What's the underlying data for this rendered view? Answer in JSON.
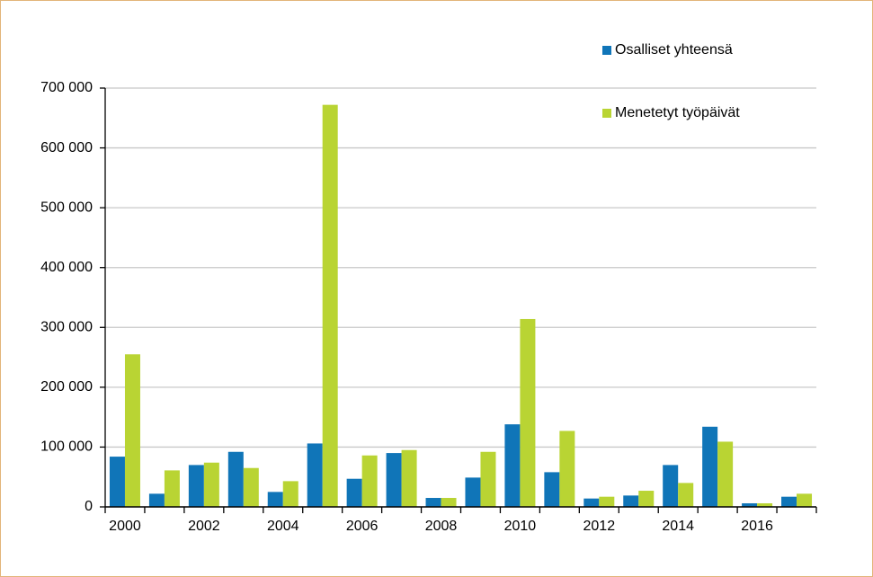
{
  "chart_data": {
    "type": "bar",
    "categories": [
      "2000",
      null,
      "2002",
      null,
      "2004",
      null,
      "2006",
      null,
      "2008",
      null,
      "2010",
      null,
      "2012",
      null,
      "2014",
      null,
      "2016",
      null
    ],
    "series": [
      {
        "name": "Osalliset yhteensä",
        "color": "#1075b8",
        "values": [
          84000,
          22000,
          70000,
          92000,
          25000,
          106000,
          47000,
          90000,
          15000,
          49000,
          138000,
          58000,
          14000,
          19000,
          70000,
          134000,
          6000,
          17000
        ]
      },
      {
        "name": "Menetetyt työpäivät",
        "color": "#b9d433",
        "values": [
          255000,
          61000,
          74000,
          65000,
          43000,
          672000,
          86000,
          95000,
          15000,
          92000,
          314000,
          127000,
          17000,
          27000,
          40000,
          109000,
          6000,
          22000
        ]
      }
    ],
    "ylim": [
      0,
      700000
    ],
    "yticks": [
      0,
      {
        "value": 100000,
        "label": "100 000"
      },
      {
        "value": 200000,
        "label": "200 000"
      },
      {
        "value": 300000,
        "label": "300 000"
      },
      {
        "value": 400000,
        "label": "400 000"
      },
      {
        "value": 500000,
        "label": "500 000"
      },
      {
        "value": 600000,
        "label": "600 000"
      },
      {
        "value": 700000,
        "label": "700 000"
      }
    ],
    "grid": true,
    "legend": "top-right"
  }
}
